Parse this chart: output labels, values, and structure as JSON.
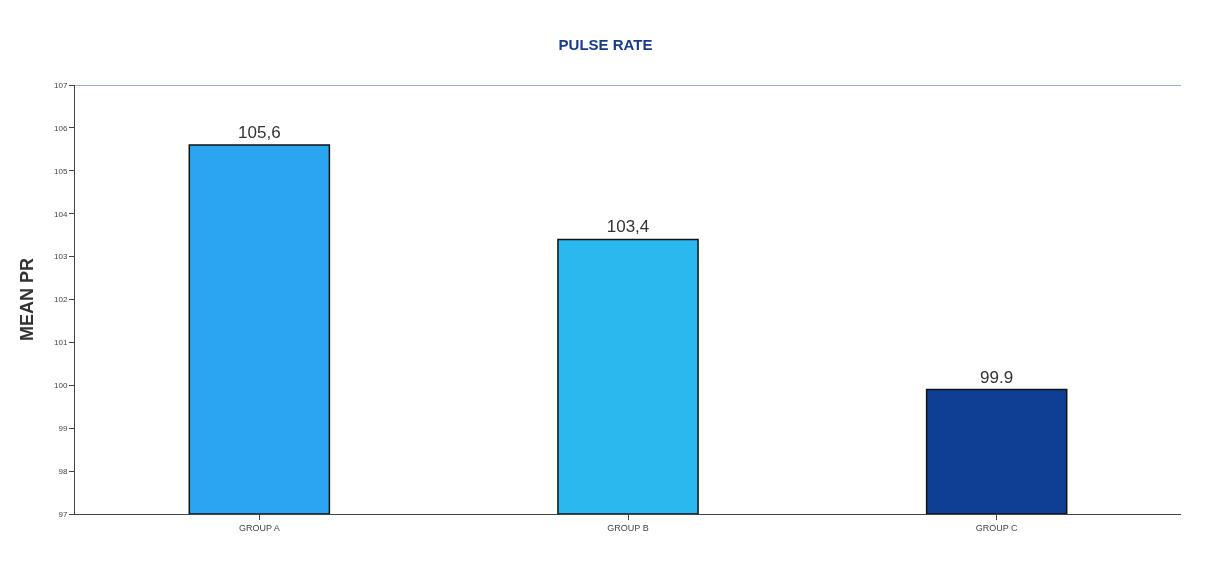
{
  "chart_data": {
    "type": "bar",
    "title": "PULSE RATE",
    "ylabel": "MEAN PR",
    "categories": [
      "GROUP A",
      "GROUP B",
      "GROUP C"
    ],
    "values": [
      105.6,
      103.4,
      99.9
    ],
    "colors": [
      "#2aa6f0",
      "#2ab8ee",
      "#0d3f95"
    ],
    "value_labels": [
      "105,6",
      "103,4",
      "99.9"
    ],
    "ylim": [
      97,
      107
    ],
    "yticks": [
      97,
      98,
      99,
      100,
      101,
      102,
      103,
      104,
      105,
      106,
      107
    ],
    "grid": false
  }
}
